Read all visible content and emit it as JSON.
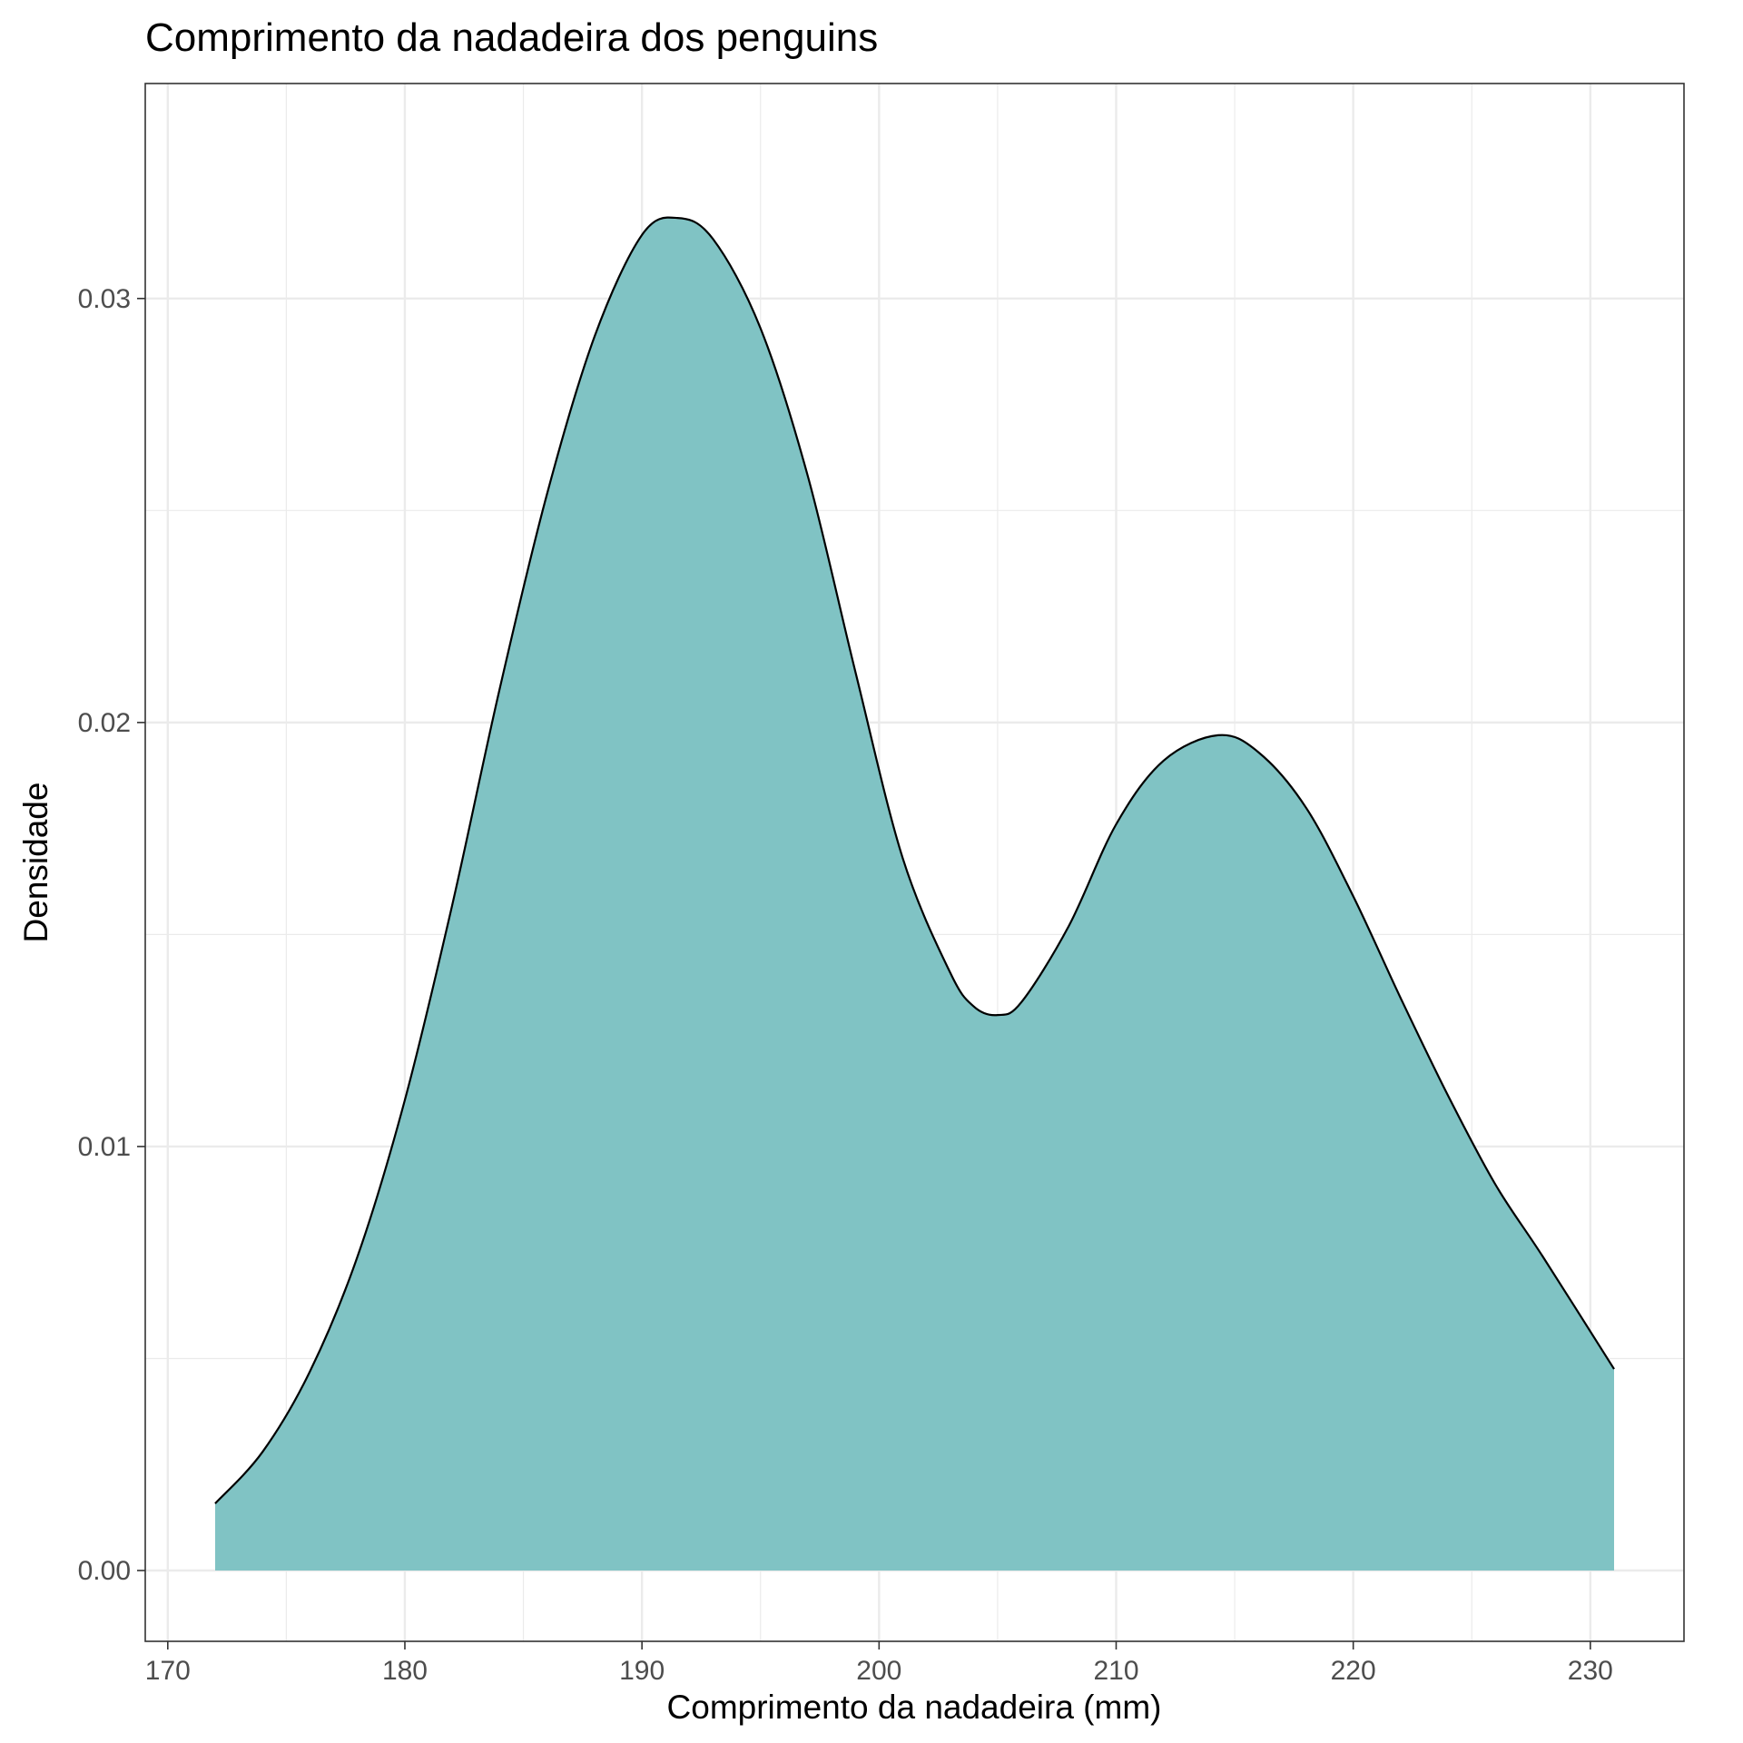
{
  "chart_data": {
    "type": "area",
    "title": "Comprimento da nadadeira dos penguins",
    "xlabel": "Comprimento da nadadeira (mm)",
    "ylabel": "Densidade",
    "xlim": [
      169.05,
      233.95
    ],
    "ylim": [
      -0.00167,
      0.03507
    ],
    "x_ticks": [
      170,
      180,
      190,
      200,
      210,
      220,
      230
    ],
    "x_tick_labels": [
      "170",
      "180",
      "190",
      "200",
      "210",
      "220",
      "230"
    ],
    "y_ticks": [
      0,
      0.01,
      0.02,
      0.03
    ],
    "y_tick_labels": [
      "0.00",
      "0.01",
      "0.02",
      "0.03"
    ],
    "grid": true,
    "legend": "none",
    "colors": {
      "fill": "#80c3c4",
      "line": "#000000",
      "grid": "#ebebeb",
      "panel_border": "#333333"
    },
    "series": [
      {
        "x": [
          172,
          174,
          176,
          178,
          180,
          182,
          184,
          186,
          188,
          190,
          191.5,
          193,
          195,
          197,
          199,
          201,
          203,
          204,
          205,
          206,
          208,
          210,
          212,
          214.3,
          216,
          218,
          220,
          222,
          224,
          226,
          228,
          231
        ],
        "y": [
          0.00158,
          0.0028,
          0.0047,
          0.0074,
          0.0111,
          0.0157,
          0.0208,
          0.0254,
          0.0291,
          0.0315,
          0.0319,
          0.0314,
          0.0293,
          0.0258,
          0.0212,
          0.0168,
          0.0141,
          0.0133,
          0.0131,
          0.0134,
          0.0152,
          0.0176,
          0.0191,
          0.0197,
          0.0193,
          0.018,
          0.0159,
          0.0135,
          0.0112,
          0.0091,
          0.0074,
          0.00475
        ]
      }
    ]
  }
}
